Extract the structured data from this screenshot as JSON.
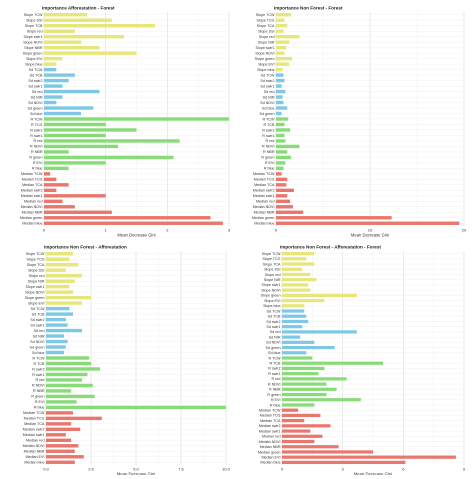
{
  "chart_data": [
    {
      "type": "bar",
      "orientation": "horizontal",
      "title": "Importance Afforestation - Forest",
      "xlabel": "Mean Decrease Gini",
      "ylabel": "",
      "xlim": [
        0,
        3
      ],
      "xticks": [
        "0",
        "1",
        "2",
        "3"
      ],
      "grid": true,
      "categories": [
        "Slope TCW",
        "Slope SSI",
        "Slope TCB",
        "Slope red",
        "Slope swir1",
        "Slope NDVI",
        "Slope NBR",
        "Slope green",
        "Slope EVI",
        "Slope blue",
        "Sd TCW",
        "Sd TCB",
        "Sd swir2",
        "Sd swir1",
        "Sd red",
        "Sd NIR",
        "Sd NDVI",
        "Sd green",
        "Sd blue",
        "R TCW",
        "R TCG",
        "R swir2",
        "R swir1",
        "R red",
        "R NDVI",
        "R NBR",
        "R green",
        "R EVI",
        "R blue",
        "Median TCW",
        "Median TCG",
        "Median TCA",
        "Median swir2",
        "Median swir1",
        "Median red",
        "Median NDVI",
        "Median NBR",
        "Median green",
        "Median blue"
      ],
      "colors": [
        "#e6e67a",
        "#e6e67a",
        "#e6e67a",
        "#e6e67a",
        "#e6e67a",
        "#e6e67a",
        "#e6e67a",
        "#e6e67a",
        "#e6e67a",
        "#e6e67a",
        "#7ec8e6",
        "#7ec8e6",
        "#7ec8e6",
        "#7ec8e6",
        "#7ec8e6",
        "#7ec8e6",
        "#7ec8e6",
        "#7ec8e6",
        "#7ec8e6",
        "#88dc78",
        "#88dc78",
        "#88dc78",
        "#88dc78",
        "#88dc78",
        "#88dc78",
        "#88dc78",
        "#88dc78",
        "#88dc78",
        "#88dc78",
        "#e8776d",
        "#e8776d",
        "#e8776d",
        "#e8776d",
        "#e8776d",
        "#e8776d",
        "#e8776d",
        "#e8776d",
        "#e8776d",
        "#e8776d"
      ],
      "values": [
        0.7,
        1.1,
        1.8,
        0.5,
        1.3,
        0.6,
        0.9,
        1.5,
        0.3,
        0.2,
        0.2,
        0.5,
        0.4,
        0.3,
        0.9,
        0.3,
        0.2,
        0.8,
        0.6,
        3.0,
        1.0,
        1.5,
        1.0,
        2.2,
        1.2,
        0.4,
        2.1,
        1.0,
        0.4,
        0.1,
        0.2,
        0.4,
        0.2,
        1.0,
        0.3,
        0.5,
        1.1,
        2.7,
        2.9
      ]
    },
    {
      "type": "bar",
      "orientation": "horizontal",
      "title": "Importance Non Forest - Forest",
      "xlabel": "Mean Decrease Gini",
      "ylabel": "",
      "xlim": [
        0,
        20
      ],
      "xticks": [
        "0",
        "10",
        "20"
      ],
      "grid": true,
      "categories": [
        "Slope TCW",
        "Slope TCG",
        "Slope TCA",
        "Slope SSI",
        "Slope red",
        "Slope NIR",
        "Slope swir1",
        "Slope NDVI",
        "Slope green",
        "Slope EVI",
        "Slope blue",
        "Sd TCW",
        "Sd swir2",
        "Sd swir1",
        "Sd red",
        "Sd NIR",
        "Sd NDVI",
        "Sd blue",
        "Sd green",
        "R TCW",
        "R TCB",
        "R swir2",
        "R swir1",
        "R red",
        "R NDVI",
        "R NBR",
        "R green",
        "R EVI",
        "R blue",
        "Median TCW",
        "Median TCG",
        "Median TCA",
        "Median swir2",
        "Median swir1",
        "Median red",
        "Median NDVI",
        "Median NBR",
        "Median green",
        "Median blue"
      ],
      "colors": [
        "#e6e67a",
        "#e6e67a",
        "#e6e67a",
        "#e6e67a",
        "#e6e67a",
        "#e6e67a",
        "#e6e67a",
        "#e6e67a",
        "#e6e67a",
        "#e6e67a",
        "#e6e67a",
        "#7ec8e6",
        "#7ec8e6",
        "#7ec8e6",
        "#7ec8e6",
        "#7ec8e6",
        "#7ec8e6",
        "#7ec8e6",
        "#7ec8e6",
        "#88dc78",
        "#88dc78",
        "#88dc78",
        "#88dc78",
        "#88dc78",
        "#88dc78",
        "#88dc78",
        "#88dc78",
        "#88dc78",
        "#88dc78",
        "#e8776d",
        "#e8776d",
        "#e8776d",
        "#e8776d",
        "#e8776d",
        "#e8776d",
        "#e8776d",
        "#e8776d",
        "#e8776d",
        "#e8776d"
      ],
      "values": [
        1.6,
        0.9,
        1.2,
        0.8,
        2.5,
        1.4,
        1.1,
        0.9,
        1.7,
        1.4,
        0.7,
        0.8,
        0.9,
        0.6,
        1.0,
        0.7,
        0.8,
        1.2,
        0.6,
        1.3,
        0.9,
        1.5,
        0.9,
        1.0,
        2.5,
        1.2,
        1.6,
        1.0,
        0.8,
        0.6,
        1.2,
        1.1,
        1.9,
        1.2,
        1.5,
        1.8,
        2.9,
        12.3,
        19.5
      ]
    },
    {
      "type": "bar",
      "orientation": "horizontal",
      "title": "Importance Non Forest - Afforestation",
      "xlabel": "Mean Decrease Gini",
      "ylabel": "",
      "xlim": [
        0,
        10
      ],
      "xticks": [
        "0.0",
        "2.5",
        "5.0",
        "7.5",
        "10.0"
      ],
      "grid": true,
      "categories": [
        "Slope TCW",
        "Slope TCG",
        "Slope TCA",
        "Slope SSI",
        "Slope red",
        "Slope NIR",
        "Slope swir1",
        "Slope NDVI",
        "Slope green",
        "Slope EVI",
        "Sd TCW",
        "Sd TCB",
        "Sd swir2",
        "Sd swir1",
        "Sd red",
        "Sd NIR",
        "Sd NDVI",
        "Sd green",
        "Sd blue",
        "R TCW",
        "R TCB",
        "R swir2",
        "R swir1",
        "R red",
        "R NDVI",
        "R NBR",
        "R green",
        "R EVI",
        "R blue",
        "Median TCW",
        "Median TCG",
        "Median TCA",
        "Median swir2",
        "Median swir1",
        "Median red",
        "Median NDVI",
        "Median NBR",
        "Median EVI",
        "Median blue"
      ],
      "colors": [
        "#e6e67a",
        "#e6e67a",
        "#e6e67a",
        "#e6e67a",
        "#e6e67a",
        "#e6e67a",
        "#e6e67a",
        "#e6e67a",
        "#e6e67a",
        "#e6e67a",
        "#7ec8e6",
        "#7ec8e6",
        "#7ec8e6",
        "#7ec8e6",
        "#7ec8e6",
        "#7ec8e6",
        "#7ec8e6",
        "#7ec8e6",
        "#7ec8e6",
        "#88dc78",
        "#88dc78",
        "#88dc78",
        "#88dc78",
        "#88dc78",
        "#88dc78",
        "#88dc78",
        "#88dc78",
        "#88dc78",
        "#88dc78",
        "#e8776d",
        "#e8776d",
        "#e8776d",
        "#e8776d",
        "#e8776d",
        "#e8776d",
        "#e8776d",
        "#e8776d",
        "#e8776d",
        "#e8776d"
      ],
      "values": [
        1.5,
        1.3,
        1.8,
        1.1,
        2.0,
        1.6,
        1.3,
        1.5,
        2.5,
        2.0,
        1.3,
        1.5,
        1.1,
        1.2,
        2.0,
        1.0,
        1.2,
        1.1,
        1.0,
        2.4,
        2.5,
        3.0,
        2.3,
        2.0,
        2.6,
        1.4,
        2.7,
        1.7,
        10.0,
        1.5,
        3.1,
        1.4,
        1.9,
        1.1,
        1.4,
        1.8,
        1.6,
        2.1,
        1.6
      ]
    },
    {
      "type": "bar",
      "orientation": "horizontal",
      "title": "Importance Non Forest - Afforestation - Forest",
      "xlabel": "Mean Decrease Gini",
      "ylabel": "",
      "xlim": [
        0,
        9
      ],
      "xticks": [
        "0",
        "3",
        "6",
        "9"
      ],
      "grid": true,
      "categories": [
        "Slope TCW",
        "Slope TCG",
        "Slope TCA",
        "Slope SSI",
        "Slope red",
        "Slope NIR",
        "Slope swir1",
        "Slope NDVI",
        "Slope green",
        "Slope EVI",
        "Slope blue",
        "Sd TCW",
        "Sd TCB",
        "Sd swir2",
        "Sd swir1",
        "Sd red",
        "Sd NIR",
        "Sd NDVI",
        "Sd green",
        "Sd blue",
        "R TCW",
        "R TCB",
        "R swir2",
        "R swir1",
        "R red",
        "R NDVI",
        "R NBR",
        "R green",
        "R EVI",
        "R blue",
        "Median TCW",
        "Median TCG",
        "Median TCA",
        "Median swir2",
        "Median swir1",
        "Median red",
        "Median NDVI",
        "Median NBR",
        "Median green",
        "Median EVI",
        "Median blue"
      ],
      "colors": [
        "#e6e67a",
        "#e6e67a",
        "#e6e67a",
        "#e6e67a",
        "#e6e67a",
        "#e6e67a",
        "#e6e67a",
        "#e6e67a",
        "#e6e67a",
        "#e6e67a",
        "#e6e67a",
        "#7ec8e6",
        "#7ec8e6",
        "#7ec8e6",
        "#7ec8e6",
        "#7ec8e6",
        "#7ec8e6",
        "#7ec8e6",
        "#7ec8e6",
        "#7ec8e6",
        "#88dc78",
        "#88dc78",
        "#88dc78",
        "#88dc78",
        "#88dc78",
        "#88dc78",
        "#88dc78",
        "#88dc78",
        "#88dc78",
        "#88dc78",
        "#e8776d",
        "#e8776d",
        "#e8776d",
        "#e8776d",
        "#e8776d",
        "#e8776d",
        "#e8776d",
        "#e8776d",
        "#e8776d",
        "#e8776d",
        "#e8776d"
      ],
      "values": [
        1.6,
        1.2,
        1.6,
        1.0,
        1.4,
        1.7,
        1.3,
        1.4,
        3.7,
        2.1,
        1.1,
        1.1,
        1.2,
        1.3,
        1.0,
        3.7,
        0.9,
        1.6,
        2.6,
        1.2,
        1.5,
        5.0,
        2.1,
        1.8,
        3.2,
        2.2,
        2.7,
        2.2,
        3.9,
        1.6,
        0.8,
        1.9,
        1.1,
        2.4,
        1.4,
        2.0,
        1.6,
        2.8,
        4.5,
        8.6,
        6.1
      ]
    }
  ]
}
